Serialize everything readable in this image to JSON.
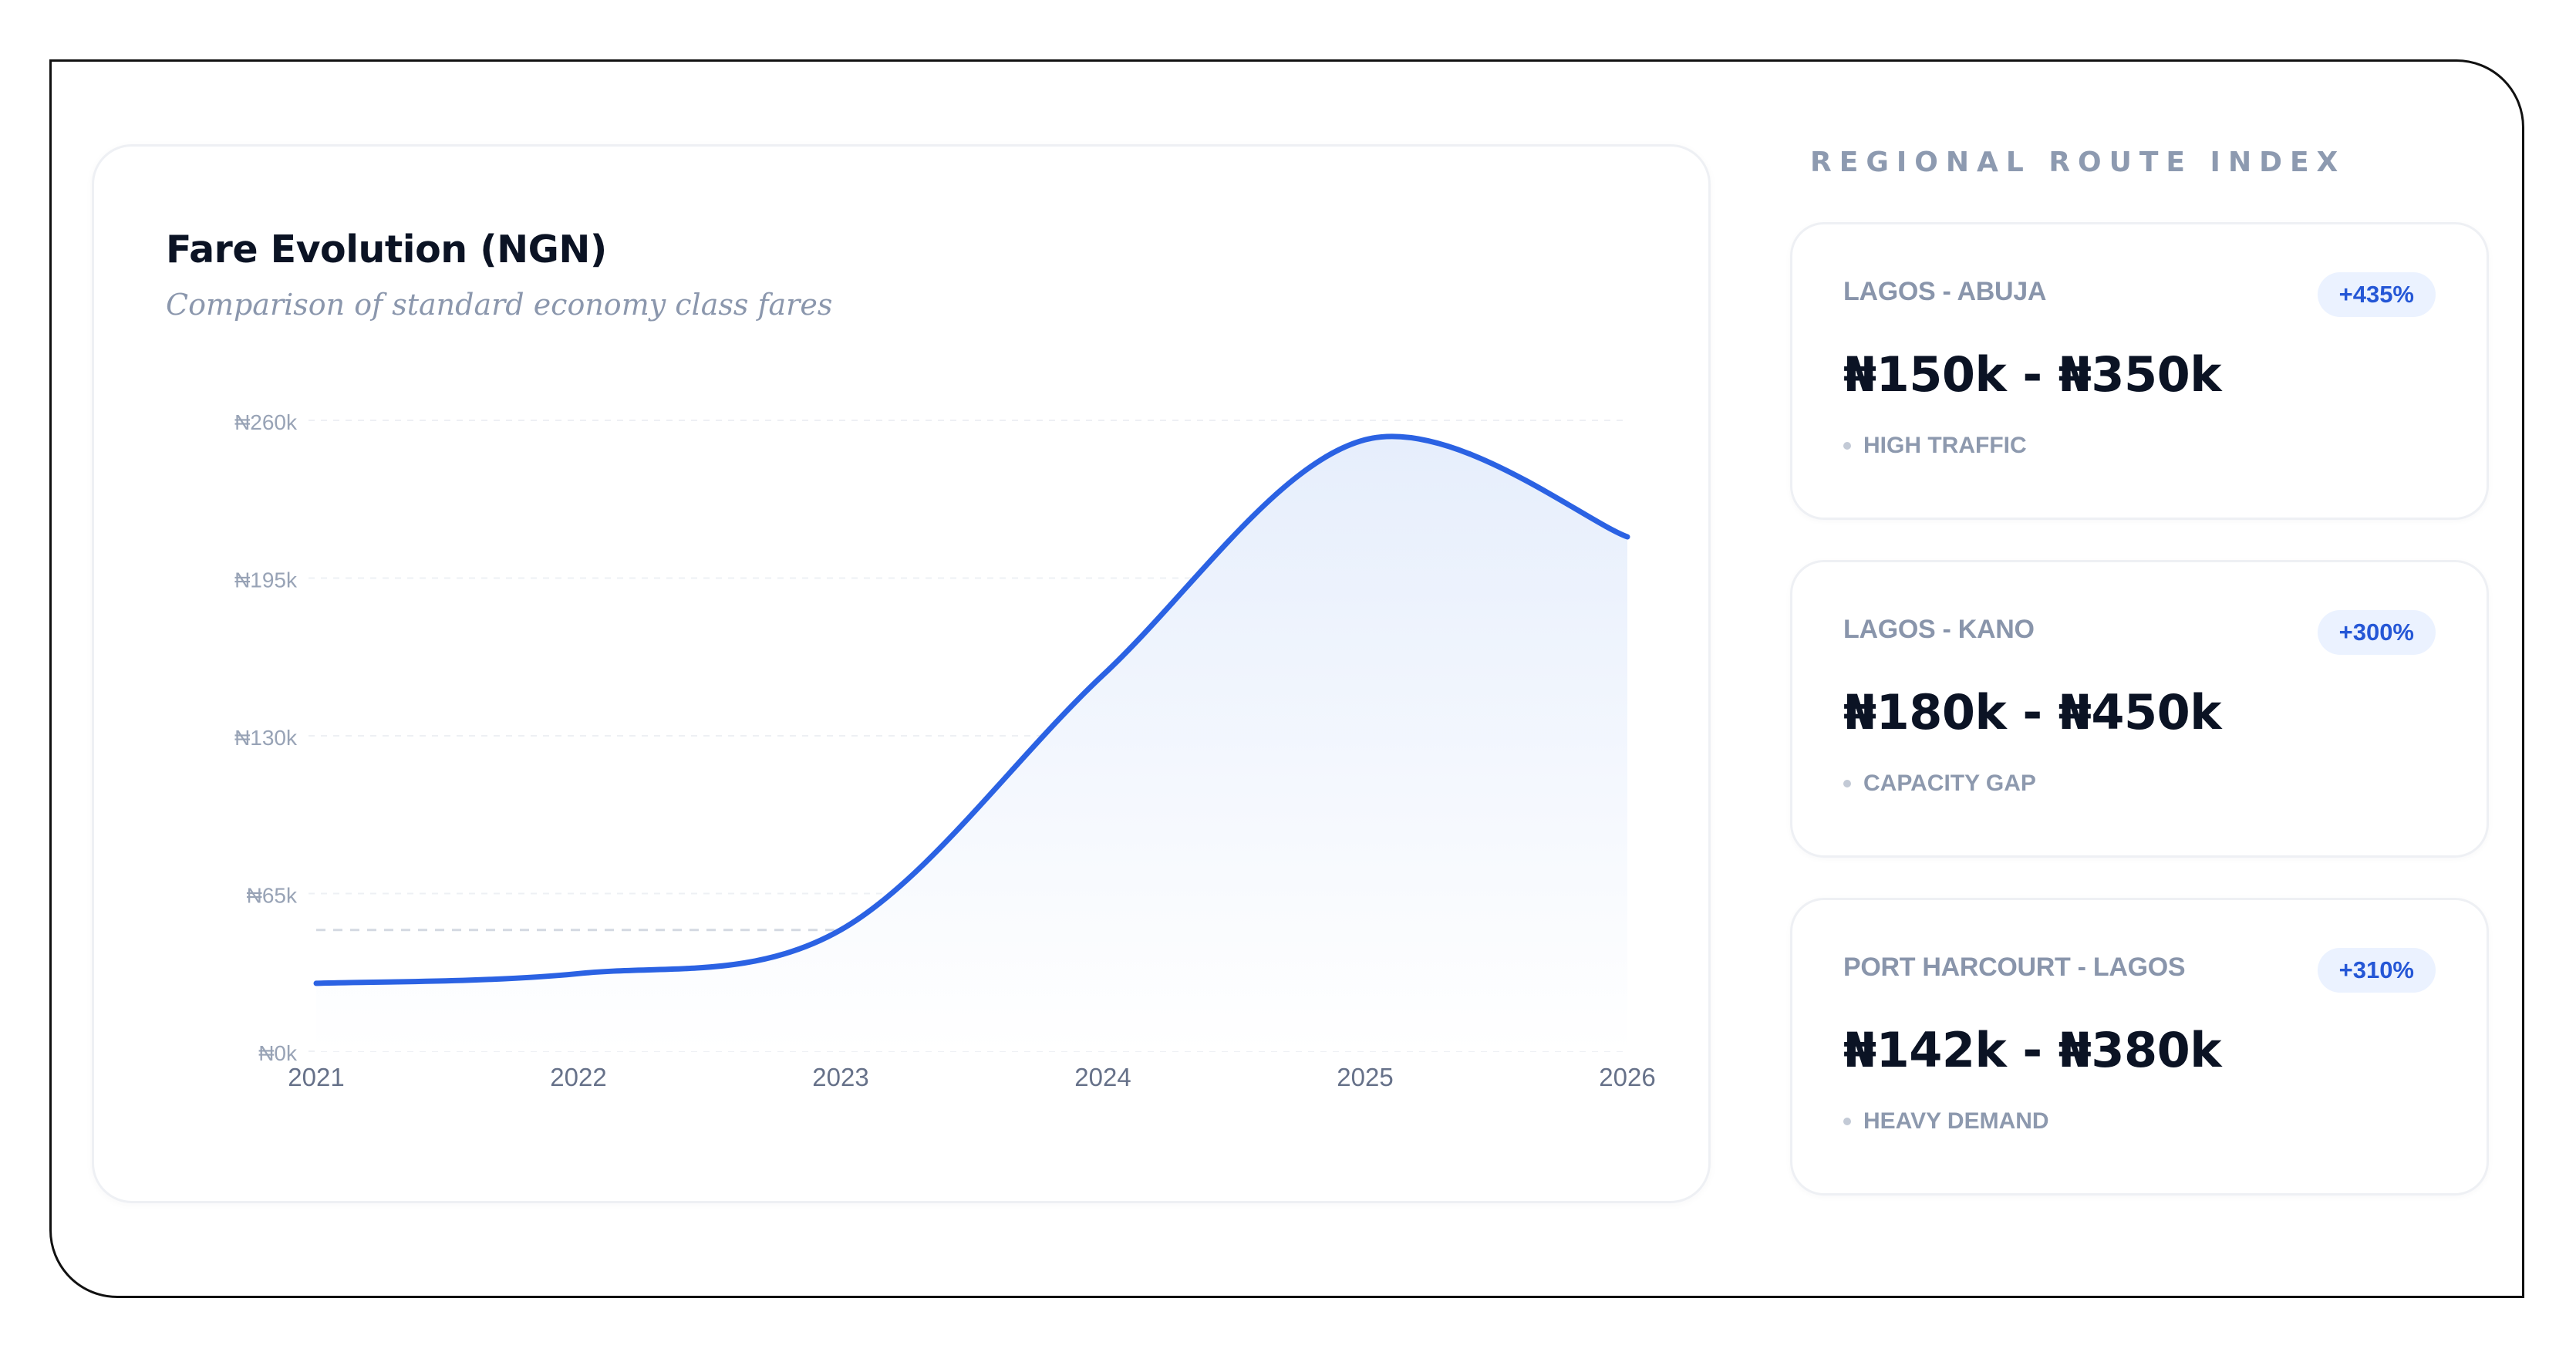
{
  "chart_card": {
    "title": "Fare Evolution (NGN)",
    "subtitle": "Comparison of standard economy class fares"
  },
  "chart_data": {
    "type": "area",
    "title": "Fare Evolution (NGN)",
    "subtitle": "Comparison of standard economy class fares",
    "xlabel": "",
    "ylabel": "",
    "x": [
      2021,
      2022,
      2023,
      2024,
      2025,
      2026
    ],
    "x_tick_labels": [
      "2021",
      "2022",
      "2023",
      "2024",
      "2025",
      "2026"
    ],
    "y_tick_values": [
      0,
      65,
      130,
      195,
      260
    ],
    "y_tick_labels": [
      "₦0k",
      "₦65k",
      "₦130k",
      "₦195k",
      "₦260k"
    ],
    "ylim": [
      0,
      260
    ],
    "y_unit": "thousand NGN",
    "grid": true,
    "reference_line_y": 50,
    "series": [
      {
        "values": [
          28,
          32,
          50,
          155,
          252,
          212
        ],
        "color": "#2b62e3"
      }
    ],
    "fill_gradient": [
      "#e6eefc",
      "#ffffff"
    ]
  },
  "route_index": {
    "heading": "REGIONAL ROUTE INDEX",
    "routes": [
      {
        "name": "LAGOS - ABUJA",
        "change": "+435%",
        "price_range": "₦150k - ₦350k",
        "tag": "HIGH TRAFFIC"
      },
      {
        "name": "LAGOS - KANO",
        "change": "+300%",
        "price_range": "₦180k - ₦450k",
        "tag": "CAPACITY GAP"
      },
      {
        "name": "PORT HARCOURT - LAGOS",
        "change": "+310%",
        "price_range": "₦142k - ₦380k",
        "tag": "HEAVY DEMAND"
      }
    ]
  },
  "colors": {
    "line": "#2b62e3",
    "badge_bg": "#ebf2ff",
    "badge_text": "#2557d6",
    "title": "#0b1324",
    "muted": "#8d9ab0"
  }
}
